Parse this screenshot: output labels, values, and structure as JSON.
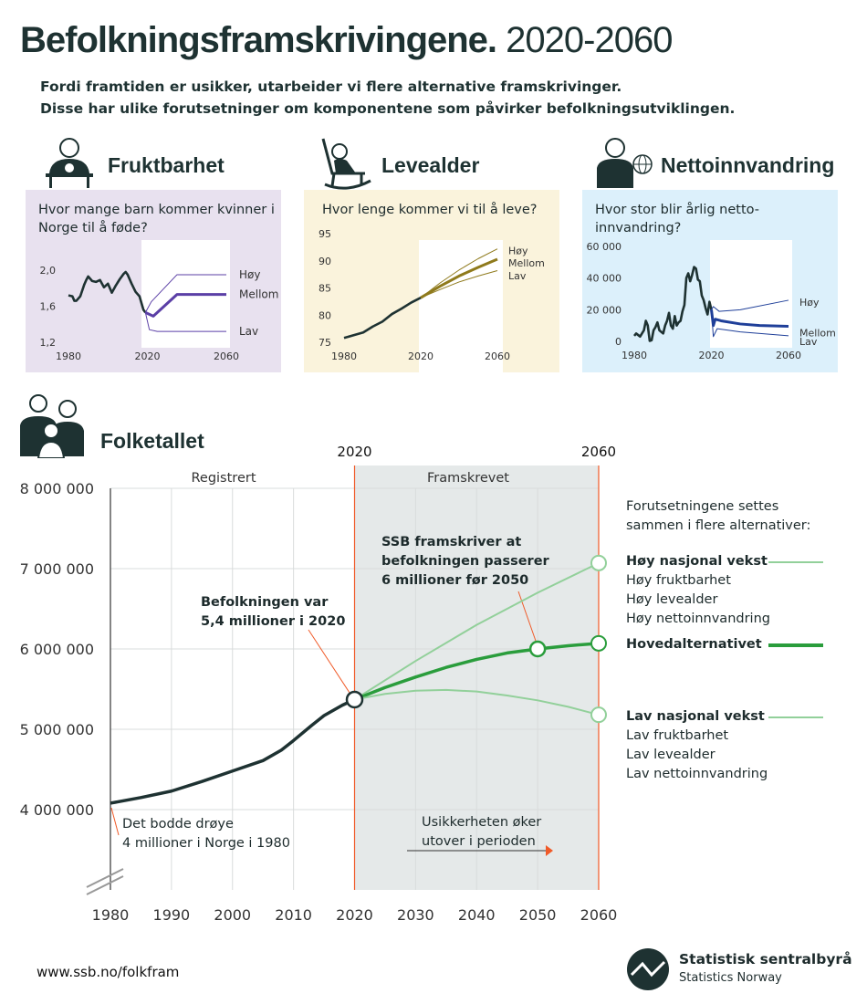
{
  "header": {
    "title_bold": "Befolkningsframskrivingene.",
    "title_light": "2020-2060",
    "subtitle_1": "Fordi framtiden er usikker, utarbeider vi flere alternative framskrivinger.",
    "subtitle_2": "Disse har ulike forutsetninger om komponentene som påvirker befolkningsutviklingen."
  },
  "sections": {
    "fertility": "Fruktbarhet",
    "life": "Levealder",
    "migration": "Nettoinnvandring",
    "population": "Folketallet"
  },
  "colors": {
    "fertility_bg": "#e8e1ef",
    "fertility_line": "#5b3fa6",
    "life_bg": "#faf3dc",
    "life_line": "#8f7a1c",
    "migration_bg": "#dcf0fb",
    "migration_line": "#1f3f99",
    "history": "#1e3232",
    "projection_bg": "#e5e9e9",
    "green_main": "#2a9d3c",
    "green_light": "#92d09a",
    "orange": "#f05a28"
  },
  "chart_data": [
    {
      "id": "fertility",
      "type": "line",
      "title": "Hvor mange barn kommer kvinner i Norge til å føde?",
      "xlim": [
        1980,
        2060
      ],
      "ylim": [
        1.2,
        2.1
      ],
      "xticks": [
        "1980",
        "2020",
        "2060"
      ],
      "yticks": [
        "1,2",
        "1,6",
        "2,0"
      ],
      "series": [
        {
          "key": "history",
          "x": [
            1980,
            1982,
            1983,
            1984,
            1986,
            1988,
            1989,
            1990,
            1992,
            1994,
            1996,
            1998,
            2000,
            2002,
            2004,
            2006,
            2008,
            2009,
            2010,
            2012,
            2014,
            2016,
            2018,
            2019
          ],
          "y": [
            1.72,
            1.71,
            1.66,
            1.66,
            1.71,
            1.84,
            1.89,
            1.93,
            1.88,
            1.87,
            1.89,
            1.81,
            1.85,
            1.75,
            1.83,
            1.9,
            1.96,
            1.98,
            1.95,
            1.85,
            1.76,
            1.71,
            1.56,
            1.53
          ]
        },
        {
          "name": "Høy",
          "x": [
            2019,
            2022,
            2035,
            2060
          ],
          "y": [
            1.53,
            1.65,
            1.95,
            1.95
          ]
        },
        {
          "name": "Mellom",
          "x": [
            2019,
            2023,
            2035,
            2060
          ],
          "y": [
            1.53,
            1.49,
            1.73,
            1.73
          ]
        },
        {
          "name": "Lav",
          "x": [
            2019,
            2021,
            2025,
            2060
          ],
          "y": [
            1.53,
            1.34,
            1.32,
            1.32
          ]
        }
      ]
    },
    {
      "id": "life",
      "type": "line",
      "title": "Hvor lenge kommer vi til å leve?",
      "xlim": [
        1980,
        2060
      ],
      "ylim": [
        75,
        97
      ],
      "xticks": [
        "1980",
        "2020",
        "2060"
      ],
      "yticks": [
        "75",
        "80",
        "85",
        "90",
        "95"
      ],
      "series": [
        {
          "key": "history",
          "x": [
            1980,
            1985,
            1990,
            1995,
            2000,
            2005,
            2010,
            2015,
            2020
          ],
          "y": [
            75.8,
            76.3,
            76.8,
            77.9,
            78.8,
            80.2,
            81.2,
            82.3,
            83.2
          ]
        },
        {
          "name": "Høy",
          "x": [
            2020,
            2030,
            2040,
            2050,
            2060
          ],
          "y": [
            83.2,
            85.9,
            88.3,
            90.4,
            92.2
          ]
        },
        {
          "name": "Mellom",
          "x": [
            2020,
            2030,
            2040,
            2050,
            2060
          ],
          "y": [
            83.2,
            85.3,
            87.2,
            88.8,
            90.3
          ]
        },
        {
          "name": "Lav",
          "x": [
            2020,
            2030,
            2040,
            2050,
            2060
          ],
          "y": [
            83.2,
            84.7,
            86.1,
            87.2,
            88.2
          ]
        }
      ]
    },
    {
      "id": "migration",
      "type": "line",
      "title": "Hvor stor blir årlig netto-innvandring?",
      "xlim": [
        1980,
        2060
      ],
      "ylim": [
        0,
        62000
      ],
      "xticks": [
        "1980",
        "2020",
        "2060"
      ],
      "yticks": [
        "0",
        "20 000",
        "40 000",
        "60 000"
      ],
      "series": [
        {
          "key": "history",
          "x": [
            1980,
            1981,
            1982,
            1983,
            1984,
            1985,
            1986,
            1987,
            1988,
            1989,
            1990,
            1991,
            1992,
            1993,
            1994,
            1995,
            1996,
            1997,
            1998,
            1999,
            2000,
            2001,
            2002,
            2003,
            2004,
            2005,
            2006,
            2007,
            2008,
            2009,
            2010,
            2011,
            2012,
            2013,
            2014,
            2015,
            2016,
            2017,
            2018,
            2019,
            2020
          ],
          "y": [
            3500,
            5000,
            4000,
            3000,
            5000,
            7000,
            13000,
            10000,
            300,
            700,
            7000,
            9000,
            12000,
            7000,
            6000,
            5000,
            10000,
            13000,
            18000,
            10000,
            8000,
            16000,
            10000,
            12000,
            13000,
            19000,
            23000,
            40000,
            43000,
            38000,
            42000,
            47000,
            46000,
            39000,
            38000,
            29000,
            26000,
            21000,
            17000,
            25000,
            20000
          ]
        },
        {
          "name": "Høy",
          "x": [
            2020,
            2021,
            2024,
            2035,
            2060
          ],
          "y": [
            20000,
            22000,
            19000,
            20000,
            26000
          ]
        },
        {
          "name": "Mellom",
          "x": [
            2020,
            2021,
            2022,
            2025,
            2035,
            2045,
            2060
          ],
          "y": [
            20000,
            10000,
            14000,
            13000,
            11000,
            10000,
            9500
          ]
        },
        {
          "name": "Lav",
          "x": [
            2020,
            2021,
            2023,
            2035,
            2060
          ],
          "y": [
            20000,
            3000,
            8000,
            6000,
            3500
          ]
        }
      ]
    },
    {
      "id": "population",
      "type": "line",
      "xlim": [
        1980,
        2060
      ],
      "ylim": [
        3500000,
        8000000
      ],
      "xticks": [
        "1980",
        "1990",
        "2000",
        "2010",
        "2020",
        "2030",
        "2040",
        "2050",
        "2060"
      ],
      "yticks": [
        "4 000 000",
        "5 000 000",
        "6 000 000",
        "7 000 000",
        "8 000 000"
      ],
      "periods": [
        "Registrert",
        "Framskrevet"
      ],
      "marker_years": [
        "2020",
        "2060"
      ],
      "series": [
        {
          "key": "history",
          "x": [
            1980,
            1985,
            1990,
            1995,
            2000,
            2005,
            2008,
            2010,
            2013,
            2015,
            2018,
            2020
          ],
          "y": [
            4080000,
            4150000,
            4230000,
            4350000,
            4480000,
            4610000,
            4740000,
            4860000,
            5050000,
            5170000,
            5300000,
            5370000
          ]
        },
        {
          "name": "Høy nasjonal vekst",
          "x": [
            2020,
            2030,
            2040,
            2050,
            2060
          ],
          "y": [
            5370000,
            5850000,
            6300000,
            6700000,
            7070000
          ]
        },
        {
          "name": "Hovedalternativet",
          "x": [
            2020,
            2025,
            2030,
            2035,
            2040,
            2045,
            2050,
            2055,
            2060
          ],
          "y": [
            5370000,
            5520000,
            5650000,
            5770000,
            5870000,
            5950000,
            6000000,
            6040000,
            6070000
          ]
        },
        {
          "name": "Lav nasjonal vekst",
          "x": [
            2020,
            2025,
            2030,
            2035,
            2040,
            2045,
            2050,
            2055,
            2060
          ],
          "y": [
            5370000,
            5440000,
            5480000,
            5490000,
            5470000,
            5420000,
            5360000,
            5280000,
            5180000
          ]
        }
      ]
    }
  ],
  "legend": {
    "intro": "Forutsetningene settes sammen i flere alternativer:",
    "high": "Høy nasjonal vekst",
    "high_items": [
      "Høy fruktbarhet",
      "Høy levealder",
      "Høy nettoinnvandring"
    ],
    "main": "Hovedalternativet",
    "low": "Lav nasjonal vekst",
    "low_items": [
      "Lav fruktbarhet",
      "Lav levealder",
      "Lav nettoinnvandring"
    ]
  },
  "annotations": {
    "pop2020_1": "Befolkningen var",
    "pop2020_2": "5,4 millioner i 2020",
    "ssb_1": "SSB framskriver at",
    "ssb_2": "befolkningen passerer",
    "ssb_3": "6 millioner før 2050",
    "start_1": "Det bodde drøye",
    "start_2": "4 millioner i Norge i 1980",
    "unc_1": "Usikkerheten øker",
    "unc_2": "utover i perioden"
  },
  "footer": {
    "url": "www.ssb.no/folkfram",
    "org": "Statistisk sentralbyrå",
    "org_en": "Statistics Norway"
  }
}
